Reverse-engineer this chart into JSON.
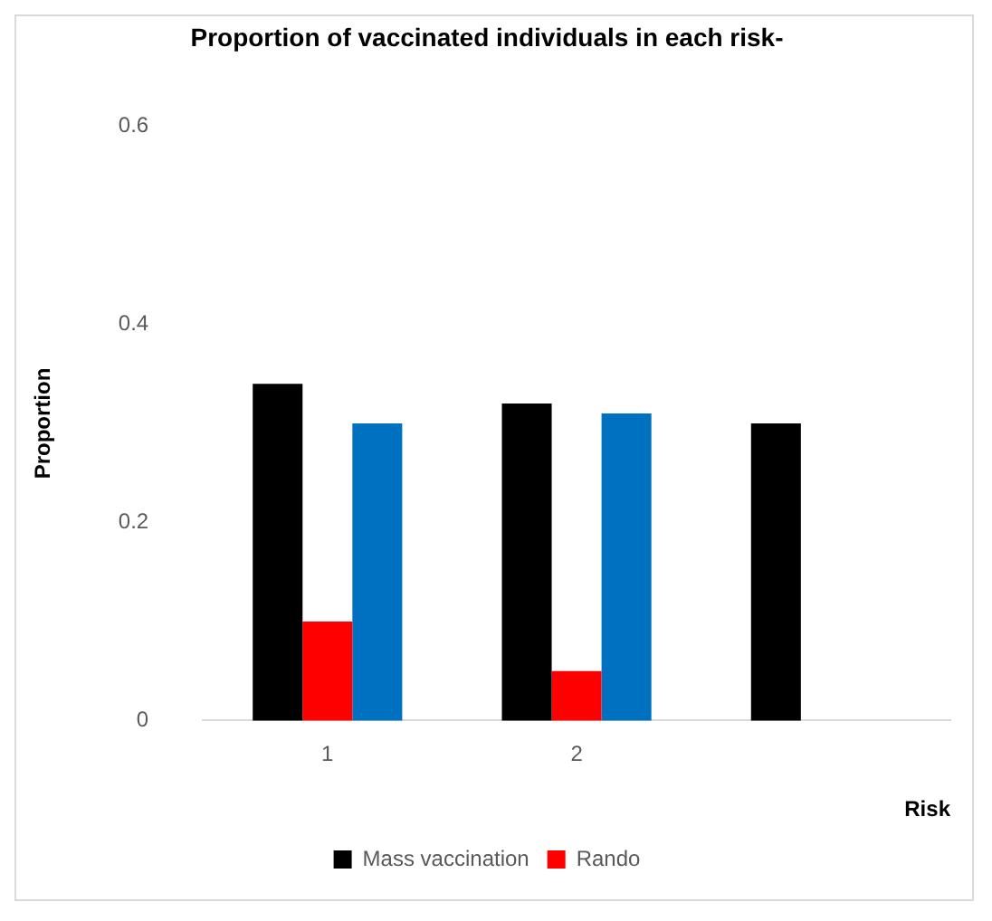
{
  "chart_data": {
    "type": "bar",
    "title": "Proportion of vaccinated individuals in each risk-",
    "ylabel": "Proportion",
    "xlabel": "Risk",
    "categories": [
      "1",
      "2",
      null
    ],
    "series": [
      {
        "name": "Mass vaccination",
        "color": "#000000",
        "values": [
          0.34,
          0.32,
          0.3
        ]
      },
      {
        "name": "Rando",
        "color": "#ff0000",
        "values": [
          0.1,
          0.05,
          null
        ]
      },
      {
        "color": "#0070c0",
        "values": [
          0.3,
          0.31,
          null
        ]
      }
    ],
    "ylim": [
      0,
      0.6
    ],
    "yticks": [
      0,
      0.2,
      0.4,
      0.6
    ],
    "grid": false,
    "legend": "bottom"
  }
}
